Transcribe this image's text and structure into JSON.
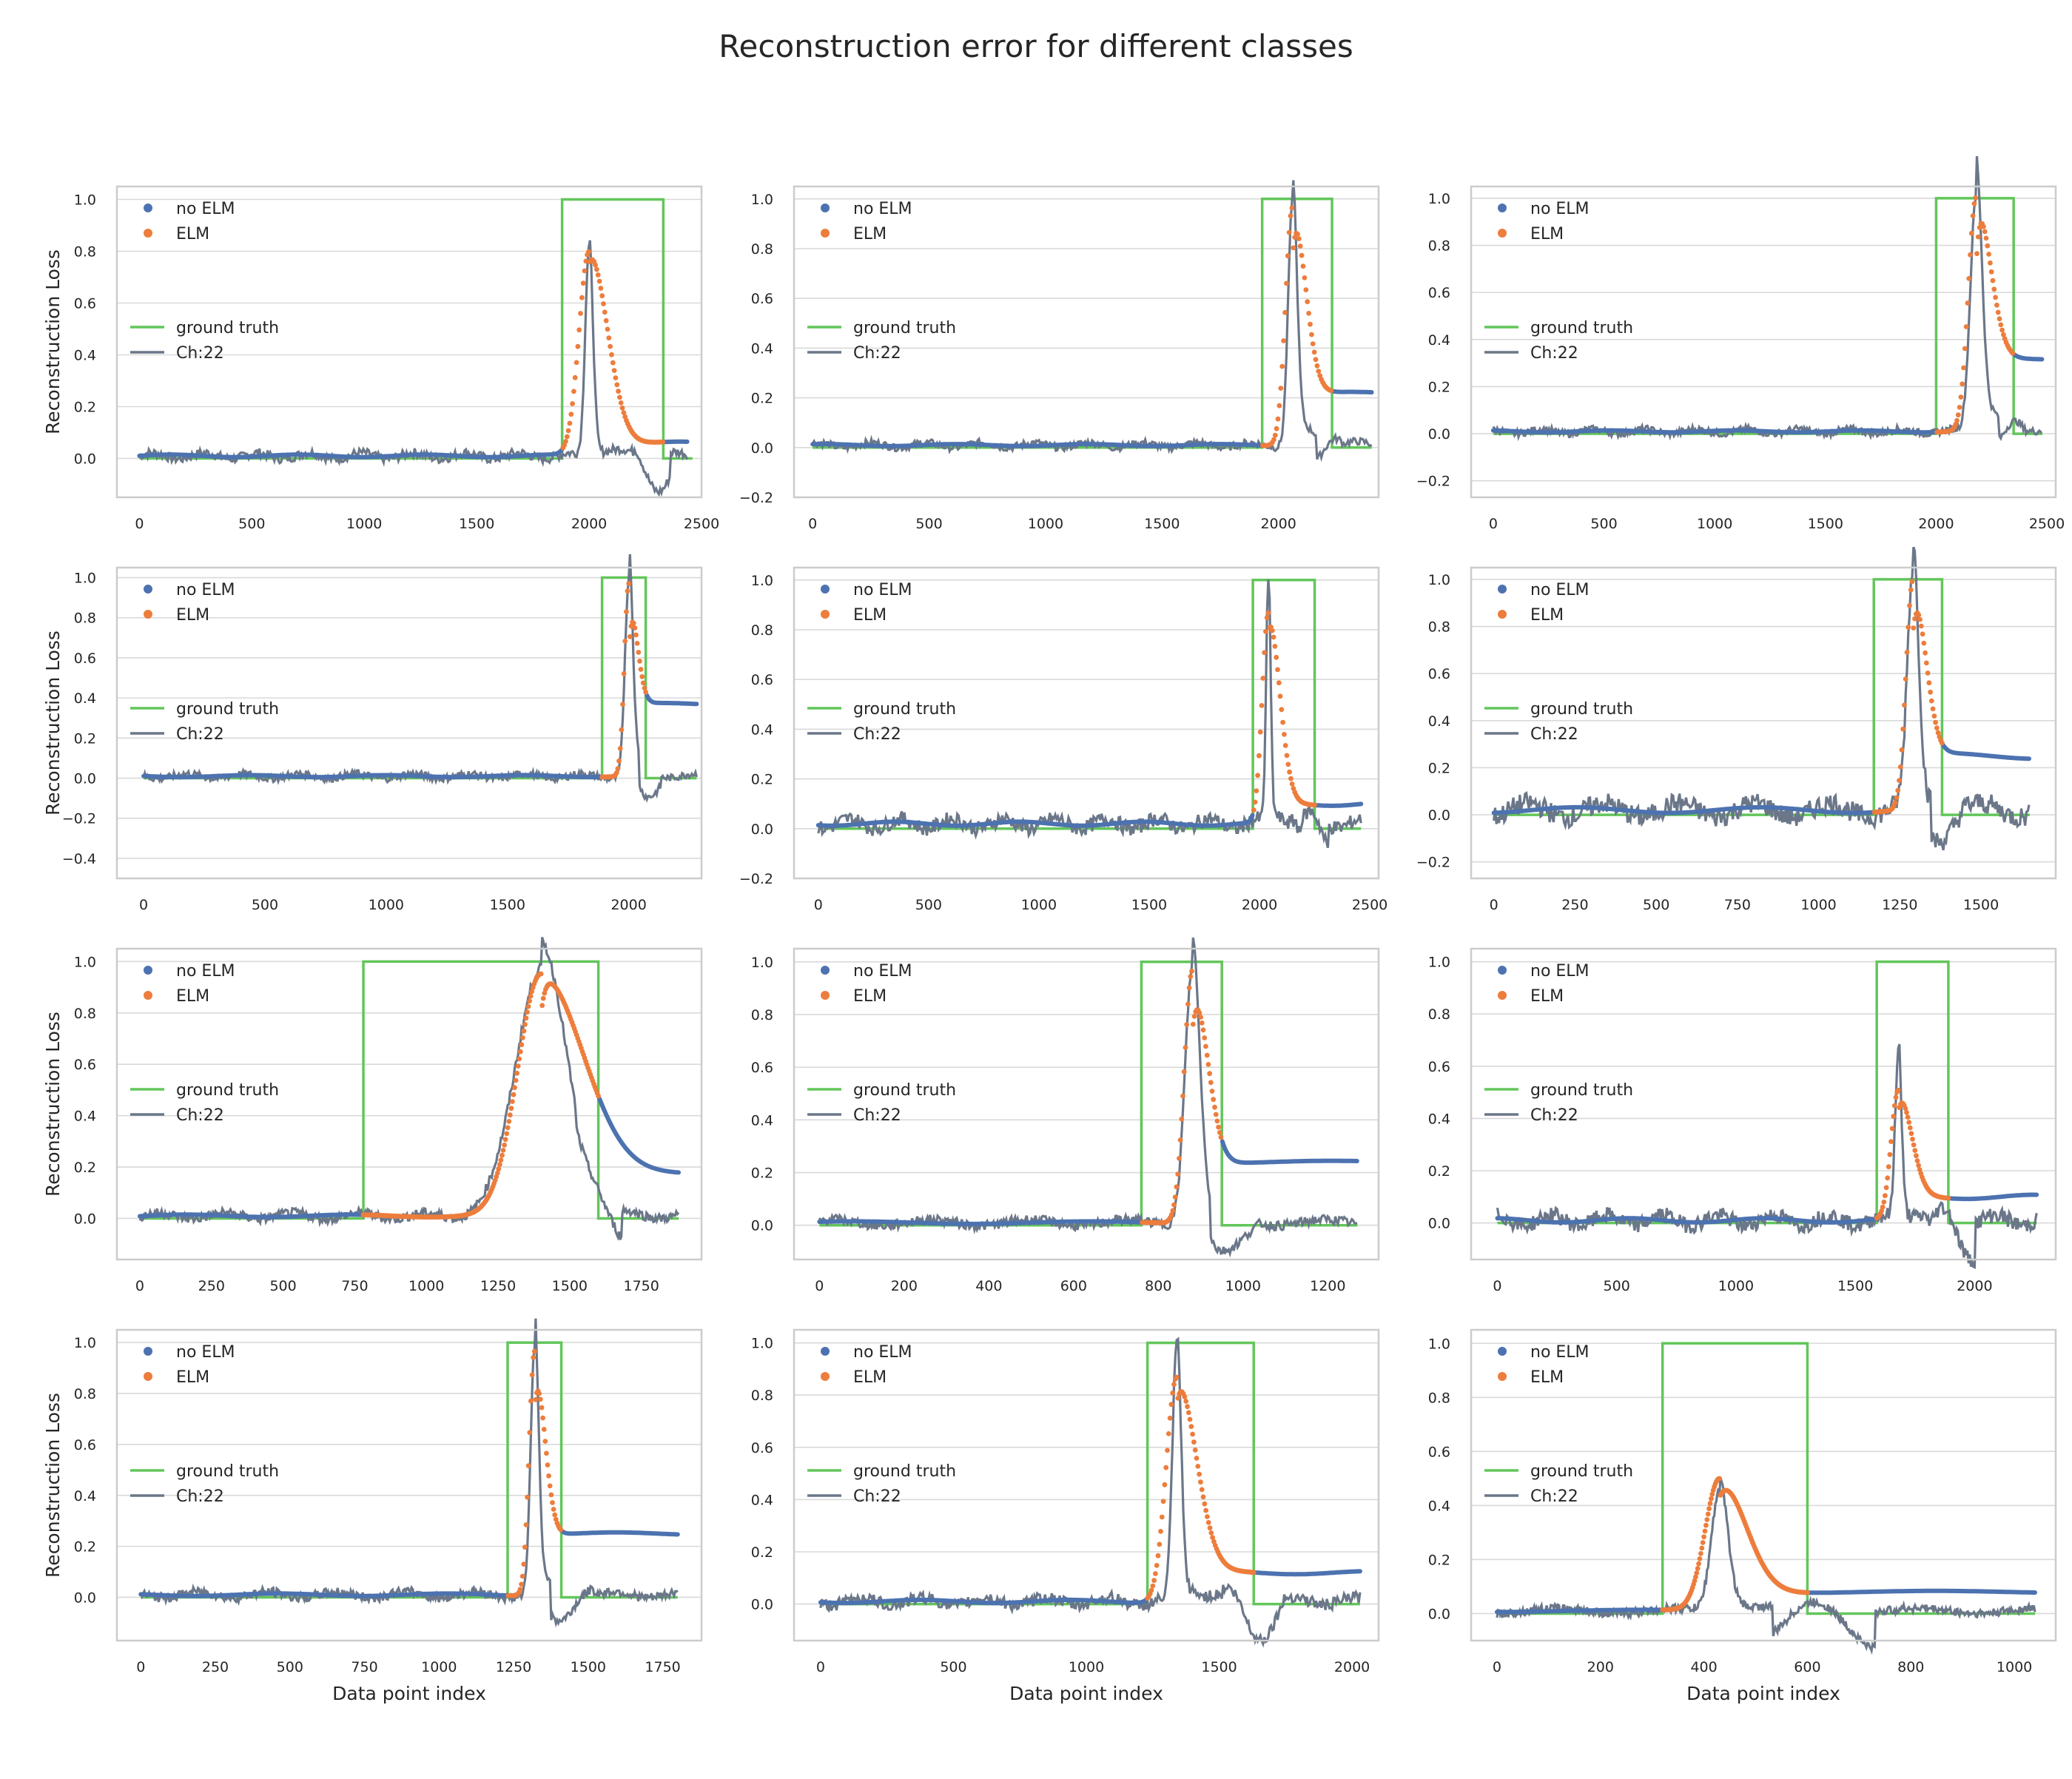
{
  "figure": {
    "title": "Reconstruction error for different classes"
  },
  "colors": {
    "no_elm": "#4c72b0",
    "elm": "#ed7d3c",
    "ground_truth": "#62c65a",
    "channel": "#6b7789",
    "grid": "#d9d9d9",
    "frame": "#cccccc",
    "text": "#262626"
  },
  "legend_labels": [
    "no ELM",
    "ELM",
    "ground truth",
    "Ch:22"
  ],
  "chart_data": [
    {
      "type": "line",
      "xlabel": "",
      "ylabel": "Reconstruction Loss",
      "xlim": [
        -100,
        2500
      ],
      "ylim": [
        -0.15,
        1.05
      ],
      "xticks": [
        0,
        500,
        1000,
        1500,
        2000,
        2500
      ],
      "yticks": [
        0.0,
        0.2,
        0.4,
        0.6,
        0.8,
        1.0
      ],
      "gt": [
        0,
        1880,
        2330,
        2460
      ],
      "elm": [
        1880,
        2330
      ],
      "end": 2440,
      "peak": [
        2000,
        0.8
      ],
      "ch_peak": 0.81,
      "tail": 0.06,
      "baseline": 0.01,
      "noise": 0.012,
      "series": [
        {
          "name": "no ELM"
        },
        {
          "name": "ELM"
        },
        {
          "name": "ground truth"
        },
        {
          "name": "Ch:22"
        }
      ]
    },
    {
      "type": "line",
      "xlabel": "",
      "ylabel": "",
      "xlim": [
        -80,
        2430
      ],
      "ylim": [
        -0.2,
        1.05
      ],
      "xticks": [
        0,
        500,
        1000,
        1500,
        2000
      ],
      "yticks": [
        -0.2,
        0.0,
        0.2,
        0.4,
        0.6,
        0.8,
        1.0
      ],
      "gt": [
        0,
        1930,
        2230,
        2400
      ],
      "elm": [
        1930,
        2230
      ],
      "end": 2400,
      "peak": [
        2060,
        0.97
      ],
      "ch_peak": 0.97,
      "tail": 0.22,
      "baseline": 0.01,
      "noise": 0.01,
      "series": [
        {
          "name": "no ELM"
        },
        {
          "name": "ELM"
        },
        {
          "name": "ground truth"
        },
        {
          "name": "Ch:22"
        }
      ]
    },
    {
      "type": "line",
      "xlabel": "",
      "ylabel": "",
      "xlim": [
        -100,
        2540
      ],
      "ylim": [
        -0.27,
        1.05
      ],
      "xticks": [
        0,
        500,
        1000,
        1500,
        2000,
        2500
      ],
      "yticks": [
        -0.2,
        0.0,
        0.2,
        0.4,
        0.6,
        0.8,
        1.0
      ],
      "gt": [
        0,
        2000,
        2350,
        2480
      ],
      "elm": [
        2000,
        2350
      ],
      "end": 2480,
      "peak": [
        2180,
        1.0
      ],
      "ch_peak": 1.0,
      "tail": 0.32,
      "baseline": 0.01,
      "noise": 0.01,
      "series": [
        {
          "name": "no ELM"
        },
        {
          "name": "ELM"
        },
        {
          "name": "ground truth"
        },
        {
          "name": "Ch:22"
        }
      ]
    },
    {
      "type": "line",
      "xlabel": "",
      "ylabel": "Reconstruction Loss",
      "xlim": [
        -110,
        2300
      ],
      "ylim": [
        -0.5,
        1.05
      ],
      "xticks": [
        0,
        500,
        1000,
        1500,
        2000
      ],
      "yticks": [
        -0.4,
        -0.2,
        0.0,
        0.2,
        0.4,
        0.6,
        0.8,
        1.0
      ],
      "gt": [
        0,
        1890,
        2070,
        2280
      ],
      "elm": [
        1890,
        2070
      ],
      "end": 2280,
      "peak": [
        2000,
        0.97
      ],
      "ch_peak": 0.97,
      "tail": 0.37,
      "baseline": 0.01,
      "noise": 0.012,
      "series": [
        {
          "name": "no ELM"
        },
        {
          "name": "ELM"
        },
        {
          "name": "ground truth"
        },
        {
          "name": "Ch:22"
        }
      ]
    },
    {
      "type": "line",
      "xlabel": "",
      "ylabel": "",
      "xlim": [
        -110,
        2540
      ],
      "ylim": [
        -0.2,
        1.05
      ],
      "xticks": [
        0,
        500,
        1000,
        1500,
        2000,
        2500
      ],
      "yticks": [
        -0.2,
        0.0,
        0.2,
        0.4,
        0.6,
        0.8,
        1.0
      ],
      "gt": [
        0,
        1970,
        2250,
        2460
      ],
      "elm": [
        1970,
        2250
      ],
      "end": 2460,
      "peak": [
        2040,
        0.86
      ],
      "ch_peak": 0.97,
      "tail": 0.1,
      "baseline": 0.02,
      "noise": 0.02,
      "series": [
        {
          "name": "no ELM"
        },
        {
          "name": "ELM"
        },
        {
          "name": "ground truth"
        },
        {
          "name": "Ch:22"
        }
      ]
    },
    {
      "type": "line",
      "xlabel": "",
      "ylabel": "",
      "xlim": [
        -70,
        1730
      ],
      "ylim": [
        -0.27,
        1.05
      ],
      "xticks": [
        0,
        250,
        500,
        750,
        1000,
        1250,
        1500
      ],
      "yticks": [
        -0.2,
        0.0,
        0.2,
        0.4,
        0.6,
        0.8,
        1.0
      ],
      "gt": [
        0,
        1170,
        1380,
        1650
      ],
      "elm": [
        1170,
        1380
      ],
      "end": 1650,
      "peak": [
        1290,
        0.99
      ],
      "ch_peak": 0.99,
      "tail": 0.25,
      "baseline": 0.02,
      "noise": 0.03,
      "series": [
        {
          "name": "no ELM"
        },
        {
          "name": "ELM"
        },
        {
          "name": "ground truth"
        },
        {
          "name": "Ch:22"
        }
      ]
    },
    {
      "type": "line",
      "xlabel": "",
      "ylabel": "Reconstruction Loss",
      "xlim": [
        -80,
        1960
      ],
      "ylim": [
        -0.16,
        1.05
      ],
      "xticks": [
        0,
        250,
        500,
        750,
        1000,
        1250,
        1500,
        1750
      ],
      "yticks": [
        0.0,
        0.2,
        0.4,
        0.6,
        0.8,
        1.0
      ],
      "gt": [
        0,
        780,
        1600,
        1880
      ],
      "elm": [
        780,
        1600
      ],
      "end": 1880,
      "peak": [
        1400,
        0.95
      ],
      "ch_peak": 0.97,
      "tail": 0.17,
      "baseline": 0.01,
      "noise": 0.012,
      "series": [
        {
          "name": "no ELM"
        },
        {
          "name": "ELM"
        },
        {
          "name": "ground truth"
        },
        {
          "name": "Ch:22"
        }
      ]
    },
    {
      "type": "line",
      "xlabel": "",
      "ylabel": "",
      "xlim": [
        -60,
        1320
      ],
      "ylim": [
        -0.13,
        1.05
      ],
      "xticks": [
        0,
        200,
        400,
        600,
        800,
        1000,
        1200
      ],
      "yticks": [
        0.0,
        0.2,
        0.4,
        0.6,
        0.8,
        1.0
      ],
      "gt": [
        0,
        760,
        950,
        1270
      ],
      "elm": [
        760,
        950
      ],
      "end": 1270,
      "peak": [
        880,
        0.97
      ],
      "ch_peak": 0.97,
      "tail": 0.24,
      "baseline": 0.01,
      "noise": 0.012,
      "series": [
        {
          "name": "no ELM"
        },
        {
          "name": "ELM"
        },
        {
          "name": "ground truth"
        },
        {
          "name": "Ch:22"
        }
      ]
    },
    {
      "type": "line",
      "xlabel": "",
      "ylabel": "",
      "xlim": [
        -110,
        2340
      ],
      "ylim": [
        -0.14,
        1.05
      ],
      "xticks": [
        0,
        500,
        1000,
        1500,
        2000
      ],
      "yticks": [
        0.0,
        0.2,
        0.4,
        0.6,
        0.8,
        1.0
      ],
      "gt": [
        0,
        1590,
        1890,
        2260
      ],
      "elm": [
        1590,
        1890
      ],
      "end": 2260,
      "peak": [
        1680,
        0.5
      ],
      "ch_peak": 0.65,
      "tail": 0.1,
      "baseline": 0.01,
      "noise": 0.02,
      "series": [
        {
          "name": "no ELM"
        },
        {
          "name": "ELM"
        },
        {
          "name": "ground truth"
        },
        {
          "name": "Ch:22"
        }
      ]
    },
    {
      "type": "line",
      "xlabel": "Data point index",
      "ylabel": "Reconstruction Loss",
      "xlim": [
        -80,
        1880
      ],
      "ylim": [
        -0.17,
        1.05
      ],
      "xticks": [
        0,
        250,
        500,
        750,
        1000,
        1250,
        1500,
        1750
      ],
      "yticks": [
        0.0,
        0.2,
        0.4,
        0.6,
        0.8,
        1.0
      ],
      "gt": [
        0,
        1230,
        1410,
        1800
      ],
      "elm": [
        1230,
        1410
      ],
      "end": 1800,
      "peak": [
        1320,
        0.97
      ],
      "ch_peak": 0.97,
      "tail": 0.25,
      "baseline": 0.01,
      "noise": 0.012,
      "series": [
        {
          "name": "no ELM"
        },
        {
          "name": "ELM"
        },
        {
          "name": "ground truth"
        },
        {
          "name": "Ch:22"
        }
      ]
    },
    {
      "type": "line",
      "xlabel": "Data point index",
      "ylabel": "",
      "xlim": [
        -100,
        2100
      ],
      "ylim": [
        -0.14,
        1.05
      ],
      "xticks": [
        0,
        500,
        1000,
        1500,
        2000
      ],
      "yticks": [
        0.0,
        0.2,
        0.4,
        0.6,
        0.8,
        1.0
      ],
      "gt": [
        0,
        1230,
        1630,
        2030
      ],
      "elm": [
        1230,
        1630
      ],
      "end": 2030,
      "peak": [
        1340,
        0.87
      ],
      "ch_peak": 0.97,
      "tail": 0.12,
      "baseline": 0.01,
      "noise": 0.015,
      "series": [
        {
          "name": "no ELM"
        },
        {
          "name": "ELM"
        },
        {
          "name": "ground truth"
        },
        {
          "name": "Ch:22"
        }
      ]
    },
    {
      "type": "line",
      "xlabel": "Data point index",
      "ylabel": "",
      "xlim": [
        -50,
        1080
      ],
      "ylim": [
        -0.1,
        1.05
      ],
      "xticks": [
        0,
        200,
        400,
        600,
        800,
        1000
      ],
      "yticks": [
        0.0,
        0.2,
        0.4,
        0.6,
        0.8,
        1.0
      ],
      "gt": [
        0,
        320,
        600,
        1040
      ],
      "elm": [
        320,
        600
      ],
      "end": 1040,
      "peak": [
        430,
        0.5
      ],
      "ch_peak": 0.45,
      "tail": 0.08,
      "baseline": 0.01,
      "noise": 0.01,
      "series": [
        {
          "name": "no ELM"
        },
        {
          "name": "ELM"
        },
        {
          "name": "ground truth"
        },
        {
          "name": "Ch:22"
        }
      ]
    }
  ]
}
